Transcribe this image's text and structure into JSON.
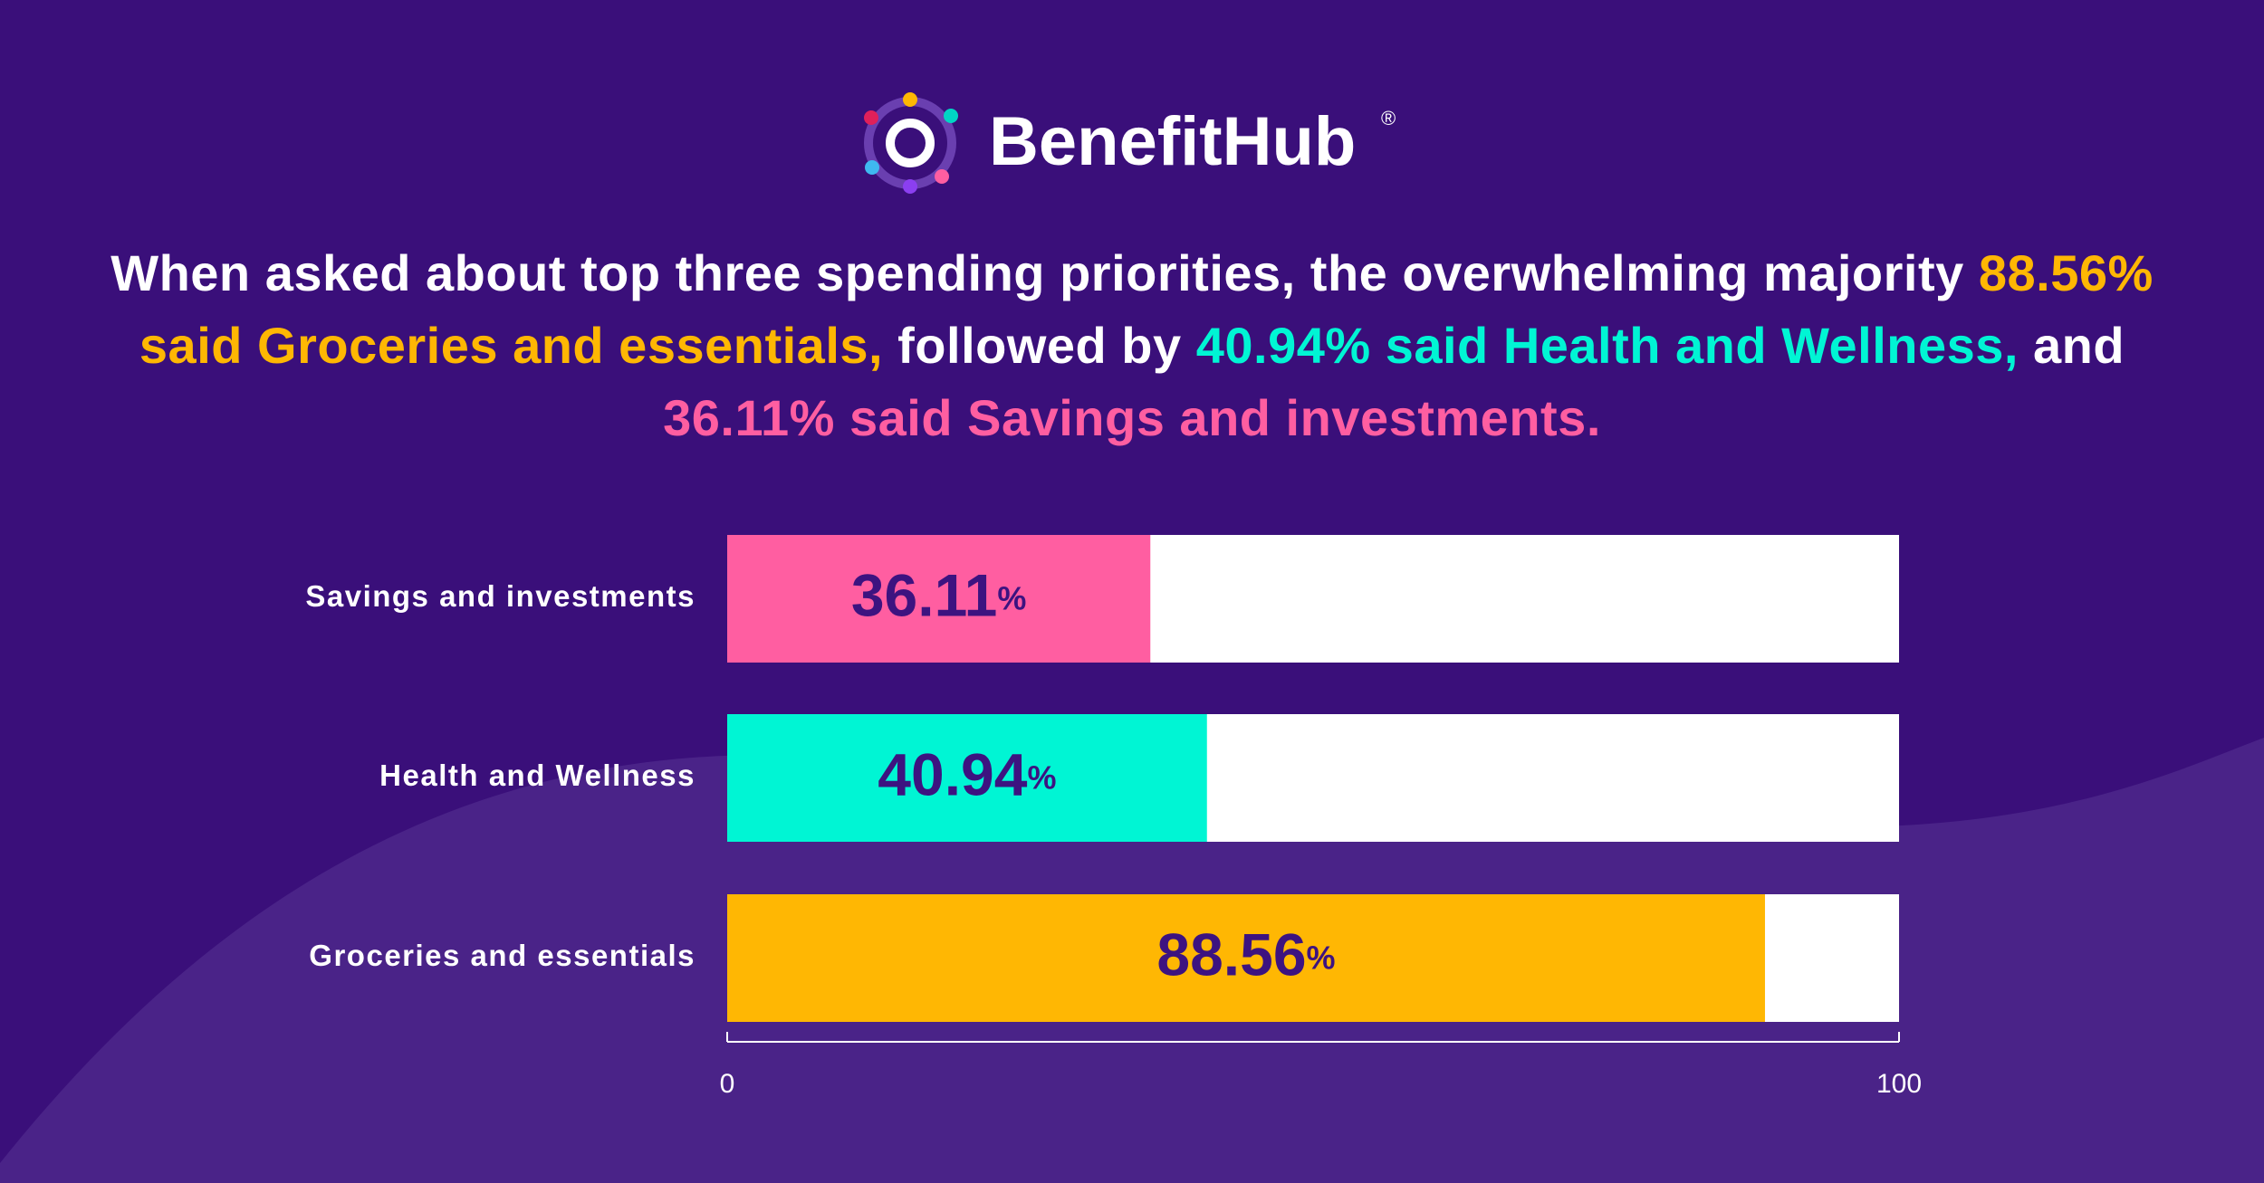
{
  "logo": {
    "name": "BenefitHub",
    "mark": "®"
  },
  "headline": [
    {
      "text": "When asked about top three spending priorities, the overwhelming majority ",
      "color": "#ffffff"
    },
    {
      "text": "88.56% said Groceries and essentials,",
      "color": "#ffb703"
    },
    {
      "text": " followed by ",
      "color": "#ffffff"
    },
    {
      "text": "40.94% said Health and Wellness,",
      "color": "#00f5d4"
    },
    {
      "text": " and ",
      "color": "#ffffff"
    },
    {
      "text": "36.11% said Savings and investments.",
      "color": "#ff5ea1"
    }
  ],
  "chart_data": {
    "type": "barh",
    "categories": [
      "Savings and investments",
      "Health and Wellness",
      "Groceries and essentials"
    ],
    "values": [
      36.11,
      40.94,
      88.56
    ],
    "value_labels": [
      "36.11%",
      "40.94%",
      "88.56%"
    ],
    "colors": [
      "#ff5ea1",
      "#00f5d4",
      "#ffb703"
    ],
    "xlim": [
      0,
      100
    ],
    "xticks": [
      0,
      100
    ]
  }
}
